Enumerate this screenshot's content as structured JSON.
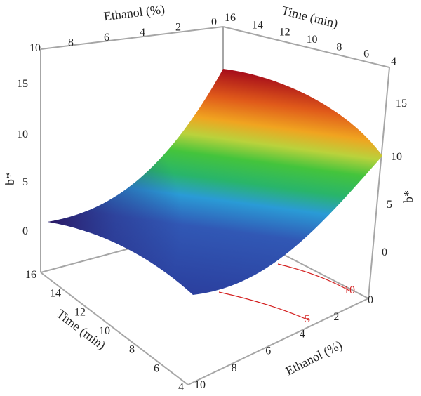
{
  "chart_data": {
    "type": "surface",
    "title": "",
    "zlabel": "b*",
    "time_axis": {
      "label": "Time (min)",
      "range": [
        4,
        16
      ],
      "ticks": [
        "4",
        "6",
        "8",
        "10",
        "12",
        "14",
        "16"
      ]
    },
    "ethanol_axis": {
      "label": "Ethanol (%)",
      "range": [
        0,
        10
      ],
      "front_ticks": [
        "0",
        "2",
        "4",
        "6",
        "8",
        "10"
      ],
      "top_ticks": [
        "10",
        "8",
        "6",
        "4",
        "2",
        "0"
      ]
    },
    "z_axis": {
      "range": [
        -5,
        17
      ],
      "left_ticks": [
        "0",
        "5",
        "10",
        "15"
      ],
      "right_ticks": [
        "0",
        "5",
        "10",
        "15"
      ]
    },
    "surface_corners": [
      {
        "time": 16,
        "ethanol": 10,
        "b": 1
      },
      {
        "time": 4,
        "ethanol": 10,
        "b": -2
      },
      {
        "time": 4,
        "ethanol": 0,
        "b": 10
      },
      {
        "time": 16,
        "ethanol": 0,
        "b": 17
      }
    ],
    "contours": [
      {
        "level": "5",
        "color": "#d42020"
      },
      {
        "level": "10",
        "color": "#d42020"
      }
    ],
    "colormap": [
      "#2e1a6b",
      "#3050b0",
      "#2a9bd6",
      "#2fc258",
      "#c8d23a",
      "#f59a1e",
      "#b0101a"
    ]
  }
}
